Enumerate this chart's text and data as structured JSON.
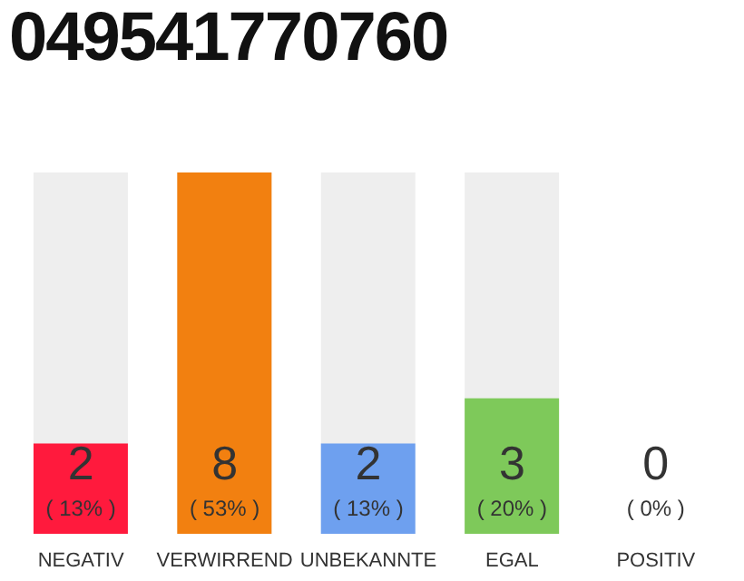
{
  "chart_data": {
    "type": "bar",
    "title": "049541770760",
    "categories": [
      "NEGATIV",
      "VERWIRREND",
      "UNBEKANNTE",
      "EGAL",
      "POSITIV"
    ],
    "values": [
      2,
      8,
      2,
      3,
      0
    ],
    "colors": [
      "#ff1a3d",
      "#f28010",
      "#6ea0ef",
      "#7ec95a",
      "#cccccc"
    ],
    "ylim": [
      0,
      8
    ],
    "tick_labels": "x",
    "grid": false,
    "legend": false,
    "data_labels": true,
    "annotations": [
      "( 13% )",
      "( 53% )",
      "( 13% )",
      "( 20% )",
      "( 0% )"
    ]
  }
}
